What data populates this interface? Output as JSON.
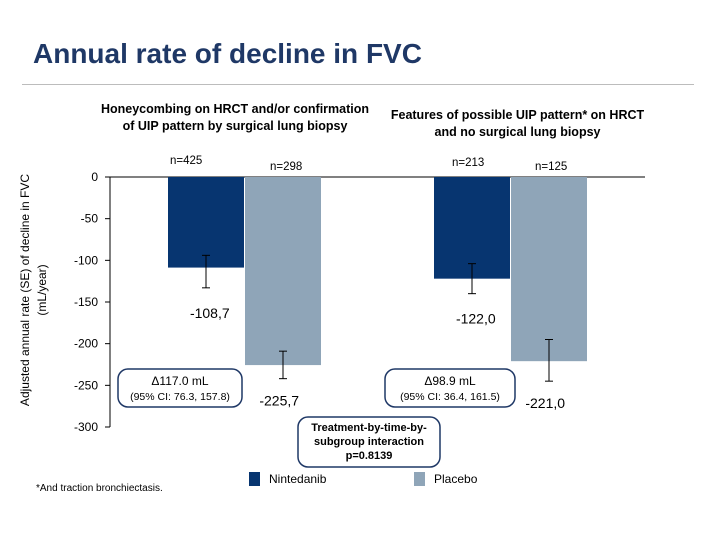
{
  "title": "Annual rate of decline in FVC",
  "colors": {
    "nintedanib": "#073570",
    "placebo": "#8fa5b8",
    "title": "#1f3866",
    "axis": "#000000"
  },
  "chart_data": {
    "type": "bar",
    "ylabel": "Adjusted annual rate (SE) of decline in FVC (mL/year)",
    "ylim": [
      -300,
      0
    ],
    "yticks": [
      0,
      -50,
      -100,
      -150,
      -200,
      -250,
      -300
    ],
    "series_names": [
      "Nintedanib",
      "Placebo"
    ],
    "groups": [
      {
        "title": "Honeycombing on HRCT and/or confirmation of UIP pattern by surgical lung biopsy",
        "bars": [
          {
            "series": "Nintedanib",
            "value": -108.7,
            "label": "-108,7",
            "n": "n=425",
            "se_low": -133,
            "se_high": -94
          },
          {
            "series": "Placebo",
            "value": -225.7,
            "label": "-225,7",
            "n": "n=298",
            "se_low": -242,
            "se_high": -209
          }
        ],
        "delta": {
          "line1": "Δ117.0 mL",
          "line2": "(95% CI: 76.3, 157.8)"
        }
      },
      {
        "title": "Features of possible UIP pattern* on HRCT and no surgical lung biopsy",
        "bars": [
          {
            "series": "Nintedanib",
            "value": -122.0,
            "label": "-122,0",
            "n": "n=213",
            "se_low": -140,
            "se_high": -104
          },
          {
            "series": "Placebo",
            "value": -221.0,
            "label": "-221,0",
            "n": "n=125",
            "se_low": -245,
            "se_high": -195
          }
        ],
        "delta": {
          "line1": "Δ98.9 mL",
          "line2": "(95% CI: 36.4, 161.5)"
        }
      }
    ],
    "interaction": [
      "Treatment-by-time-by-",
      "subgroup interaction",
      "p=0.8139"
    ]
  },
  "footnote": "*And traction bronchiectasis.",
  "legend": [
    {
      "label": "Nintedanib",
      "color_key": "nintedanib"
    },
    {
      "label": "Placebo",
      "color_key": "placebo"
    }
  ]
}
